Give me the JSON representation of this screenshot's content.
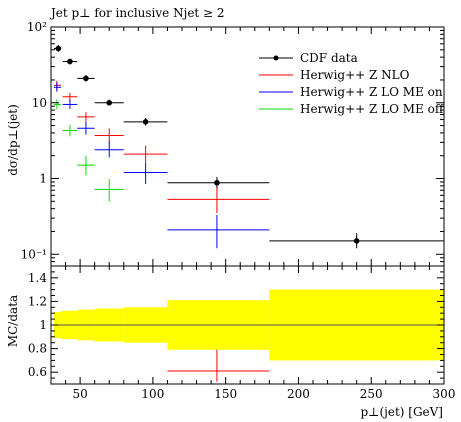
{
  "chart_data": [
    {
      "type": "scatter",
      "title": "Jet p⊥ for inclusive Njet ≥ 2",
      "xlabel": "",
      "ylabel": "dσ/dp⊥(jet)",
      "yscale": "log",
      "xlim": [
        30,
        300
      ],
      "ylim": [
        0.07,
        100
      ],
      "y_ticks": [
        "10⁻¹",
        "1",
        "10",
        "10²"
      ],
      "legend_position": "top-right",
      "series": [
        {
          "name": "CDF data",
          "color": "#000000",
          "marker": "point",
          "points": [
            {
              "x": 35,
              "xlo": 32,
              "xhi": 37,
              "y": 52,
              "ylo": 47,
              "yhi": 58
            },
            {
              "x": 43,
              "xlo": 38,
              "xhi": 48,
              "y": 35,
              "ylo": 32,
              "yhi": 38
            },
            {
              "x": 54,
              "xlo": 48,
              "xhi": 60,
              "y": 21,
              "ylo": 19,
              "yhi": 23
            },
            {
              "x": 70,
              "xlo": 60,
              "xhi": 80,
              "y": 10,
              "ylo": 9.2,
              "yhi": 11
            },
            {
              "x": 95,
              "xlo": 80,
              "xhi": 110,
              "y": 5.6,
              "ylo": 5.0,
              "yhi": 6.3
            },
            {
              "x": 144,
              "xlo": 110,
              "xhi": 180,
              "y": 0.88,
              "ylo": 0.7,
              "yhi": 1.05
            },
            {
              "x": 240,
              "xlo": 180,
              "xhi": 300,
              "y": 0.15,
              "ylo": 0.12,
              "yhi": 0.19
            }
          ]
        },
        {
          "name": "Herwig++ Z NLO",
          "color": "#ff0000",
          "marker": "cross",
          "points": [
            {
              "x": 34,
              "xlo": 32,
              "xhi": 37,
              "y": 17,
              "ylo": 15,
              "yhi": 19.5
            },
            {
              "x": 43,
              "xlo": 38,
              "xhi": 48,
              "y": 12,
              "ylo": 10.5,
              "yhi": 13.5
            },
            {
              "x": 54,
              "xlo": 48,
              "xhi": 60,
              "y": 6.5,
              "ylo": 5.6,
              "yhi": 7.5
            },
            {
              "x": 70,
              "xlo": 60,
              "xhi": 80,
              "y": 3.7,
              "ylo": 3.0,
              "yhi": 4.6
            },
            {
              "x": 95,
              "xlo": 80,
              "xhi": 110,
              "y": 2.1,
              "ylo": 1.6,
              "yhi": 2.7
            },
            {
              "x": 144,
              "xlo": 110,
              "xhi": 180,
              "y": 0.53,
              "ylo": 0.35,
              "yhi": 0.75
            }
          ]
        },
        {
          "name": "Herwig++ Z LO ME on",
          "color": "#0000ff",
          "marker": "cross",
          "points": [
            {
              "x": 34,
              "xlo": 32,
              "xhi": 37,
              "y": 16,
              "ylo": 14,
              "yhi": 18.5
            },
            {
              "x": 43,
              "xlo": 38,
              "xhi": 48,
              "y": 9.5,
              "ylo": 8.3,
              "yhi": 11
            },
            {
              "x": 54,
              "xlo": 48,
              "xhi": 60,
              "y": 4.6,
              "ylo": 3.8,
              "yhi": 5.6
            },
            {
              "x": 70,
              "xlo": 60,
              "xhi": 80,
              "y": 2.4,
              "ylo": 1.9,
              "yhi": 3.1
            },
            {
              "x": 95,
              "xlo": 80,
              "xhi": 110,
              "y": 1.2,
              "ylo": 0.85,
              "yhi": 1.6
            },
            {
              "x": 144,
              "xlo": 110,
              "xhi": 180,
              "y": 0.21,
              "ylo": 0.12,
              "yhi": 0.33
            }
          ]
        },
        {
          "name": "Herwig++ Z LO ME off",
          "color": "#00dd00",
          "marker": "cross",
          "points": [
            {
              "x": 34,
              "xlo": 32,
              "xhi": 37,
              "y": 9.5,
              "ylo": 8.3,
              "yhi": 11
            },
            {
              "x": 43,
              "xlo": 38,
              "xhi": 48,
              "y": 4.3,
              "ylo": 3.6,
              "yhi": 5.1
            },
            {
              "x": 54,
              "xlo": 48,
              "xhi": 60,
              "y": 1.5,
              "ylo": 1.1,
              "yhi": 2.0
            },
            {
              "x": 70,
              "xlo": 60,
              "xhi": 80,
              "y": 0.72,
              "ylo": 0.5,
              "yhi": 0.98
            }
          ]
        }
      ]
    },
    {
      "type": "area",
      "xlabel": "p⊥(jet) [GeV]",
      "ylabel": "MC/data",
      "xlim": [
        30,
        300
      ],
      "ylim": [
        0.5,
        1.5
      ],
      "x_ticks": [
        "50",
        "100",
        "150",
        "200",
        "250",
        "300"
      ],
      "y_ticks": [
        "0.6",
        "0.8",
        "1",
        "1.2",
        "1.4"
      ],
      "reference_line": 1,
      "band": {
        "name": "CDF data uncertainty",
        "color": "#ffff00",
        "bins": [
          {
            "xlo": 32,
            "xhi": 37,
            "lo": 0.89,
            "hi": 1.11
          },
          {
            "xlo": 37,
            "xhi": 48,
            "lo": 0.88,
            "hi": 1.12
          },
          {
            "xlo": 48,
            "xhi": 60,
            "lo": 0.87,
            "hi": 1.13
          },
          {
            "xlo": 60,
            "xhi": 80,
            "lo": 0.86,
            "hi": 1.14
          },
          {
            "xlo": 80,
            "xhi": 110,
            "lo": 0.85,
            "hi": 1.15
          },
          {
            "xlo": 110,
            "xhi": 180,
            "lo": 0.79,
            "hi": 1.21
          },
          {
            "xlo": 180,
            "xhi": 300,
            "lo": 0.7,
            "hi": 1.3
          }
        ]
      },
      "series": [
        {
          "name": "Herwig++ Z NLO",
          "color": "#ff0000",
          "points": [
            {
              "x": 144,
              "xlo": 110,
              "xhi": 180,
              "y": 0.61,
              "ylo": 0.52,
              "yhi": 0.79
            }
          ]
        }
      ]
    }
  ]
}
